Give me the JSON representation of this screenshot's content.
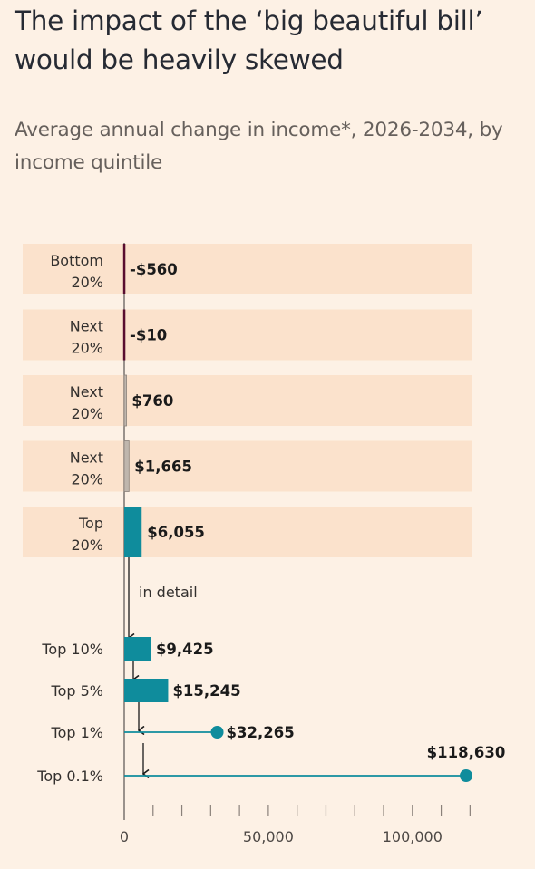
{
  "title": "The impact of the ‘big beautiful bill’ would be heavily skewed",
  "subtitle": "Average annual change in income*, 2026-2034, by income quintile",
  "detail_label": "in detail",
  "colors": {
    "background": "#fdf1e5",
    "band": "#fbe2cc",
    "negative": "#590d2f",
    "small_positive": "#bfb6ad",
    "teal": "#0f8c9c",
    "arrow": "#1a1a1a",
    "axis": "#66605c"
  },
  "chart_data": {
    "type": "bar",
    "title": "The impact of the ‘big beautiful bill’ would be heavily skewed",
    "subtitle": "Average annual change in income*, 2026-2034, by income quintile",
    "xlabel": "",
    "ylabel": "",
    "xlim": [
      0,
      120000
    ],
    "x_ticks": [
      0,
      50000,
      100000
    ],
    "x_tick_labels": [
      "0",
      "50,000",
      "100,000"
    ],
    "x_minor_step": 10000,
    "grid": false,
    "quintiles": [
      {
        "label_lines": [
          "Bottom",
          "20%"
        ],
        "value": -560,
        "value_label": "-$560",
        "color": "#590d2f"
      },
      {
        "label_lines": [
          "Next",
          "20%"
        ],
        "value": -10,
        "value_label": "-$10",
        "color": "#590d2f"
      },
      {
        "label_lines": [
          "Next",
          "20%"
        ],
        "value": 760,
        "value_label": "$760",
        "color": "#bfb6ad"
      },
      {
        "label_lines": [
          "Next",
          "20%"
        ],
        "value": 1665,
        "value_label": "$1,665",
        "color": "#bfb6ad"
      },
      {
        "label_lines": [
          "Top",
          "20%"
        ],
        "value": 6055,
        "value_label": "$6,055",
        "color": "#0f8c9c"
      }
    ],
    "top_detail": [
      {
        "label": "Top 10%",
        "value": 9425,
        "value_label": "$9,425",
        "style": "bar"
      },
      {
        "label": "Top 5%",
        "value": 15245,
        "value_label": "$15,245",
        "style": "bar"
      },
      {
        "label": "Top 1%",
        "value": 32265,
        "value_label": "$32,265",
        "style": "lollipop"
      },
      {
        "label": "Top 0.1%",
        "value": 118630,
        "value_label": "$118,630",
        "style": "lollipop"
      }
    ]
  }
}
